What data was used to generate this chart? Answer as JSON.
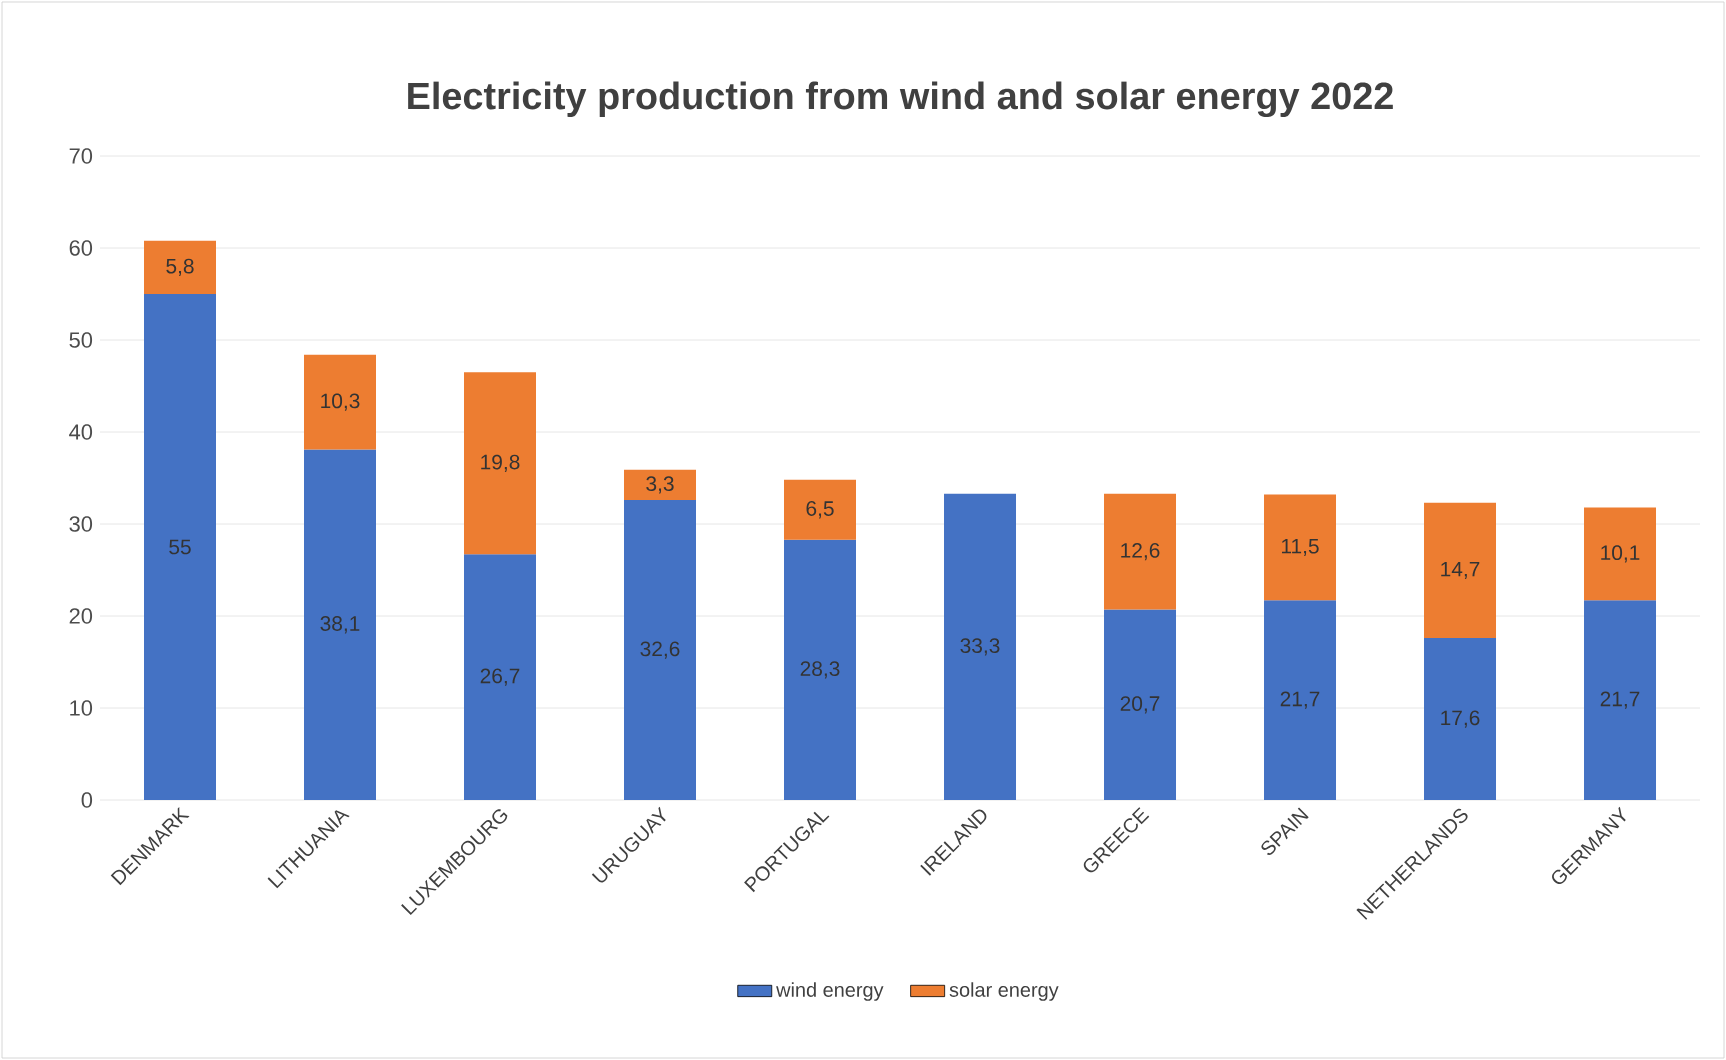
{
  "chart_data": {
    "type": "bar",
    "stacked": true,
    "title": "Electricity production from wind and solar energy 2022",
    "categories": [
      "DENMARK",
      "LITHUANIA",
      "LUXEMBOURG",
      "URUGUAY",
      "PORTUGAL",
      "IRELAND",
      "GREECE",
      "SPAIN",
      "NETHERLANDS",
      "GERMANY"
    ],
    "series": [
      {
        "name": "wind energy",
        "color": "#4472c4",
        "values": [
          55,
          38.1,
          26.7,
          32.6,
          28.3,
          33.3,
          20.7,
          21.7,
          17.6,
          21.7
        ],
        "value_labels": [
          "55",
          "38,1",
          "26,7",
          "32,6",
          "28,3",
          "33,3",
          "20,7",
          "21,7",
          "17,6",
          "21,7"
        ]
      },
      {
        "name": "solar energy",
        "color": "#ed7d31",
        "values": [
          5.8,
          10.3,
          19.8,
          3.3,
          6.5,
          null,
          12.6,
          11.5,
          14.7,
          10.1
        ],
        "value_labels": [
          "5,8",
          "10,3",
          "19,8",
          "3,3",
          "6,5",
          null,
          "12,6",
          "11,5",
          "14,7",
          "10,1"
        ]
      }
    ],
    "ylim": [
      0,
      70
    ],
    "yticks": [
      0,
      10,
      20,
      30,
      40,
      50,
      60,
      70
    ],
    "grid": "y",
    "legend": "bottom"
  }
}
